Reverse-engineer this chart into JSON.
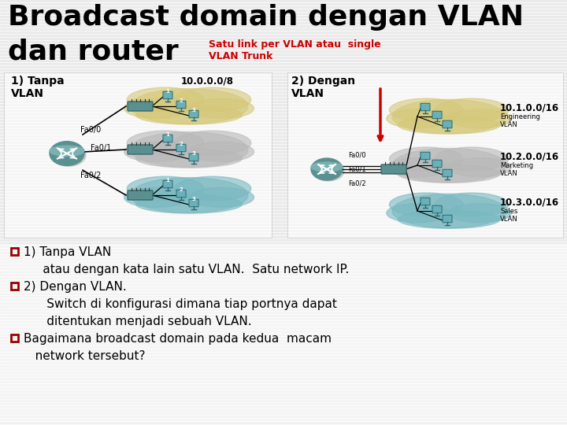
{
  "title_line1": "Broadcast domain dengan VLAN",
  "title_line2": "dan router",
  "subtitle_red": "Satu link per VLAN atau  single\nVLAN Trunk",
  "bg_color": "#ffffff",
  "slide_bg": "#e8e8e8",
  "stripe_color": "#d8d8d8",
  "title_color": "#000000",
  "red_color": "#cc0000",
  "bullet_color": "#990000",
  "left_label_bold": "1) Tanpa\nVLAN",
  "right_label_bold": "2) Dengan\nVLAN",
  "left_ip": "10.0.0.0/8",
  "right_ips": [
    "10.1.0.0/16",
    "10.2.0.0/16",
    "10.3.0.0/16"
  ],
  "left_ports": [
    "Fa0/0",
    "Fa0/1",
    "Fa0/2"
  ],
  "right_ports": [
    "Fa0/0",
    "Fa0/1",
    "Fa0/2"
  ],
  "cloud_colors_left": [
    "#d4c878",
    "#b8b8b8",
    "#78b8c0"
  ],
  "cloud_colors_right": [
    "#d4c878",
    "#b8b8b8",
    "#78b8c0"
  ],
  "right_vlan_labels": [
    "Engineering\nVLAN",
    "Marketing\nVLAN",
    "Sales\nVLAN"
  ],
  "router_body_color": "#5a9090",
  "router_edge_color": "#3a6868",
  "switch_color": "#5a9090",
  "computer_color": "#5a9090",
  "bullet_lines": [
    {
      "bullet": true,
      "text": "1) Tanpa VLAN"
    },
    {
      "bullet": false,
      "text": "     atau dengan kata lain satu VLAN.  Satu network IP."
    },
    {
      "bullet": true,
      "text": "2) Dengan VLAN."
    },
    {
      "bullet": false,
      "text": "      Switch di konfigurasi dimana tiap portnya dapat"
    },
    {
      "bullet": false,
      "text": "      ditentukan menjadi sebuah VLAN."
    },
    {
      "bullet": true,
      "text": "Bagaimana broadcast domain pada kedua  macam"
    },
    {
      "bullet": false,
      "text": "   network tersebut?"
    }
  ]
}
